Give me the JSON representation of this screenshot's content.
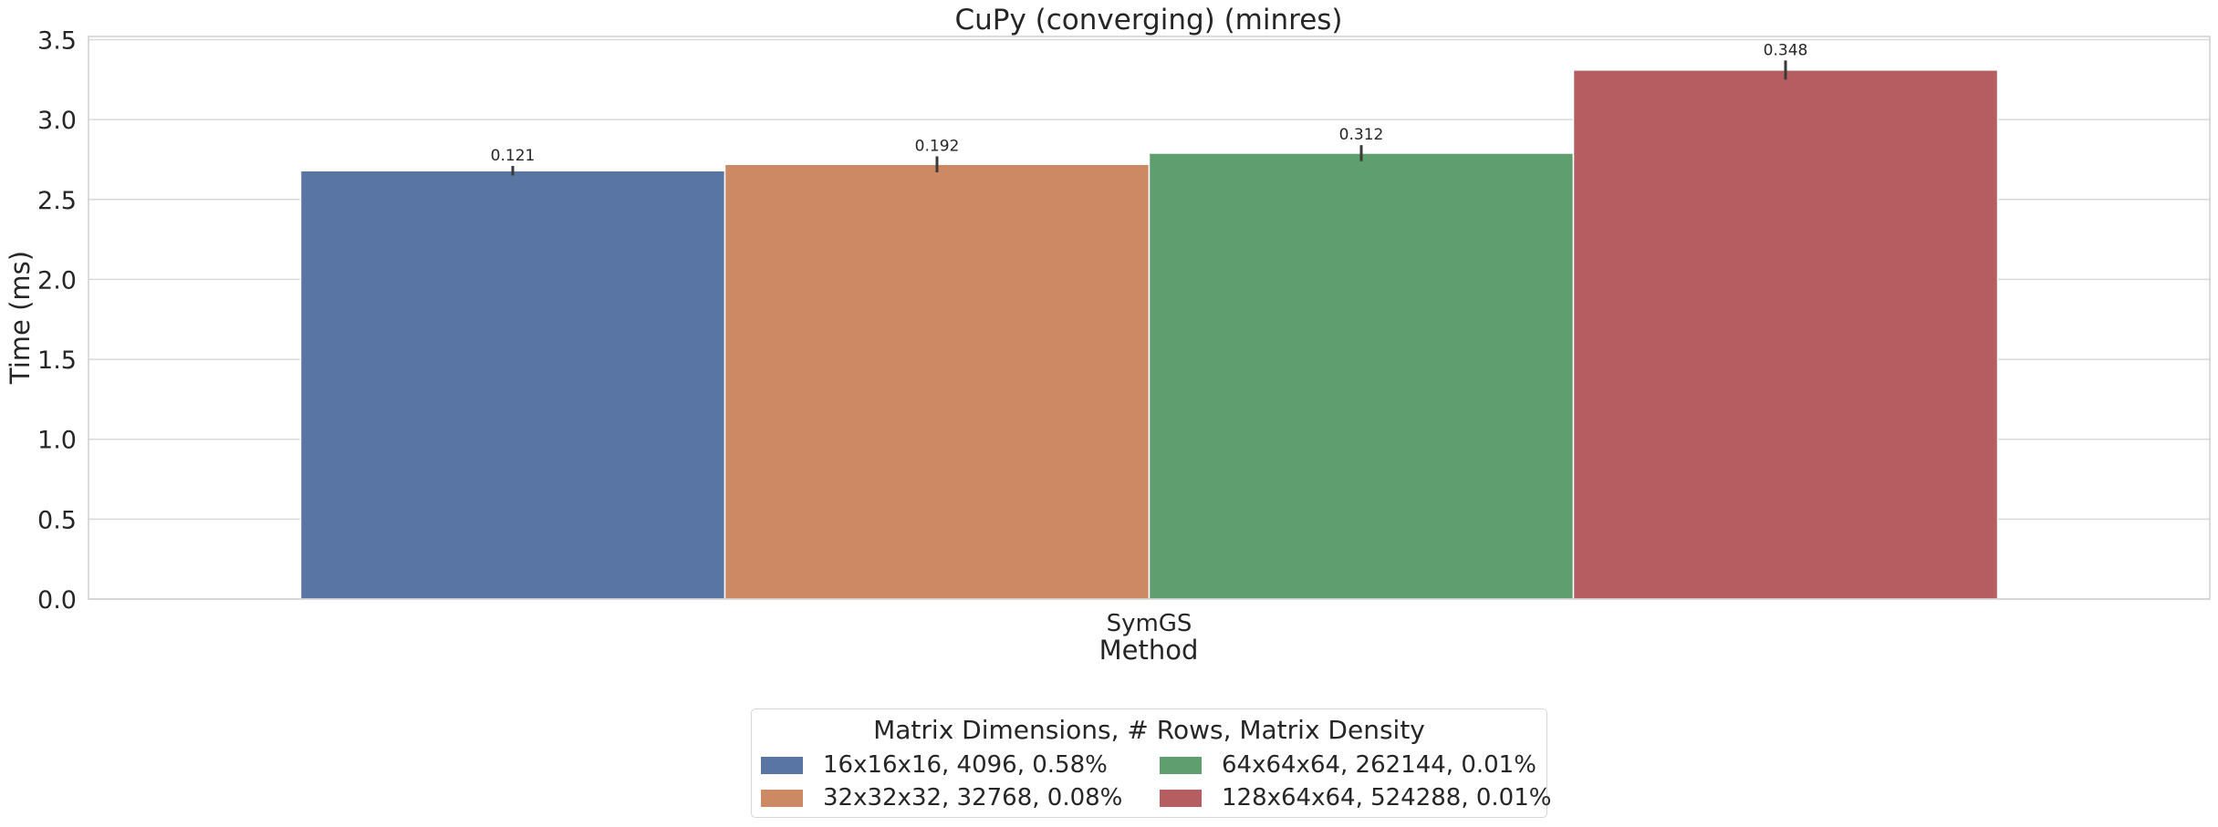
{
  "chart_data": {
    "type": "bar",
    "title": "CuPy (converging) (minres)",
    "xlabel": "Method",
    "ylabel": "Time (ms)",
    "categories": [
      "SymGS"
    ],
    "ylim": [
      0,
      3.52
    ],
    "yticks": [
      "0.0",
      "0.5",
      "1.0",
      "1.5",
      "2.0",
      "2.5",
      "3.0",
      "3.5"
    ],
    "grid": true,
    "legend_title": "Matrix Dimensions, # Rows, Matrix Density",
    "legend_position": "bottom-center",
    "series": [
      {
        "name": "16x16x16, 4096, 0.58%",
        "values": [
          2.68
        ],
        "error": [
          0.03
        ],
        "label": "0.121",
        "color": "#5875a4"
      },
      {
        "name": "32x32x32, 32768, 0.08%",
        "values": [
          2.72
        ],
        "error": [
          0.05
        ],
        "label": "0.192",
        "color": "#cc8963"
      },
      {
        "name": "64x64x64, 262144, 0.01%",
        "values": [
          2.79
        ],
        "error": [
          0.05
        ],
        "label": "0.312",
        "color": "#5f9e6e"
      },
      {
        "name": "128x64x64, 524288, 0.01%",
        "values": [
          3.31
        ],
        "error": [
          0.06
        ],
        "label": "0.348",
        "color": "#b55d60"
      }
    ]
  }
}
